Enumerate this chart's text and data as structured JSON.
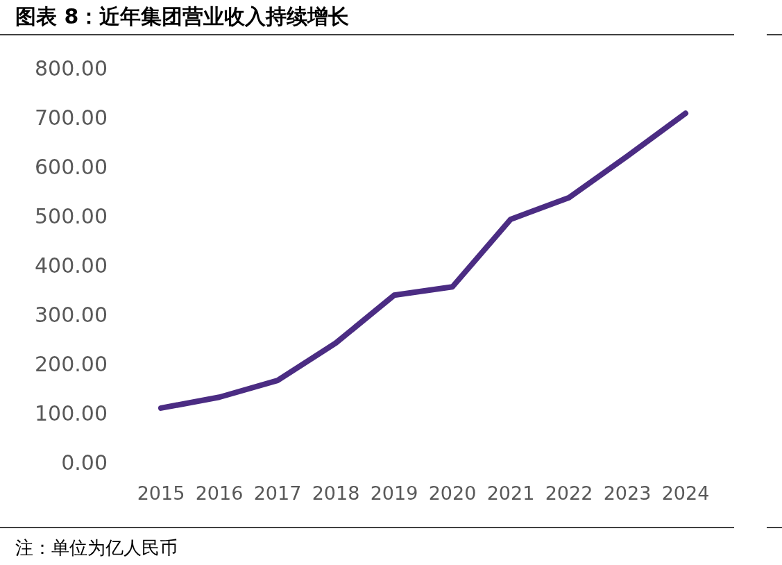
{
  "chart_data": {
    "type": "line",
    "title": "图表 8：近年集团营业收入持续增长",
    "categories": [
      "2015",
      "2016",
      "2017",
      "2018",
      "2019",
      "2020",
      "2021",
      "2022",
      "2023",
      "2024"
    ],
    "series": [
      {
        "color": "#4b2c83",
        "values": [
          110,
          132,
          166,
          242,
          339,
          356,
          493,
          537,
          621,
          708
        ]
      }
    ],
    "ylim": [
      0,
      800
    ],
    "yticks": [
      {
        "value": 0,
        "label": "0.00"
      },
      {
        "value": 100,
        "label": "100.00"
      },
      {
        "value": 200,
        "label": "200.00"
      },
      {
        "value": 300,
        "label": "300.00"
      },
      {
        "value": 400,
        "label": "400.00"
      },
      {
        "value": 500,
        "label": "500.00"
      },
      {
        "value": 600,
        "label": "600.00"
      },
      {
        "value": 700,
        "label": "700.00"
      },
      {
        "value": 800,
        "label": "800.00"
      }
    ],
    "grid": false,
    "marker": "none",
    "line_style": "solid",
    "annotations": [
      "注：单位为亿人民币"
    ]
  }
}
